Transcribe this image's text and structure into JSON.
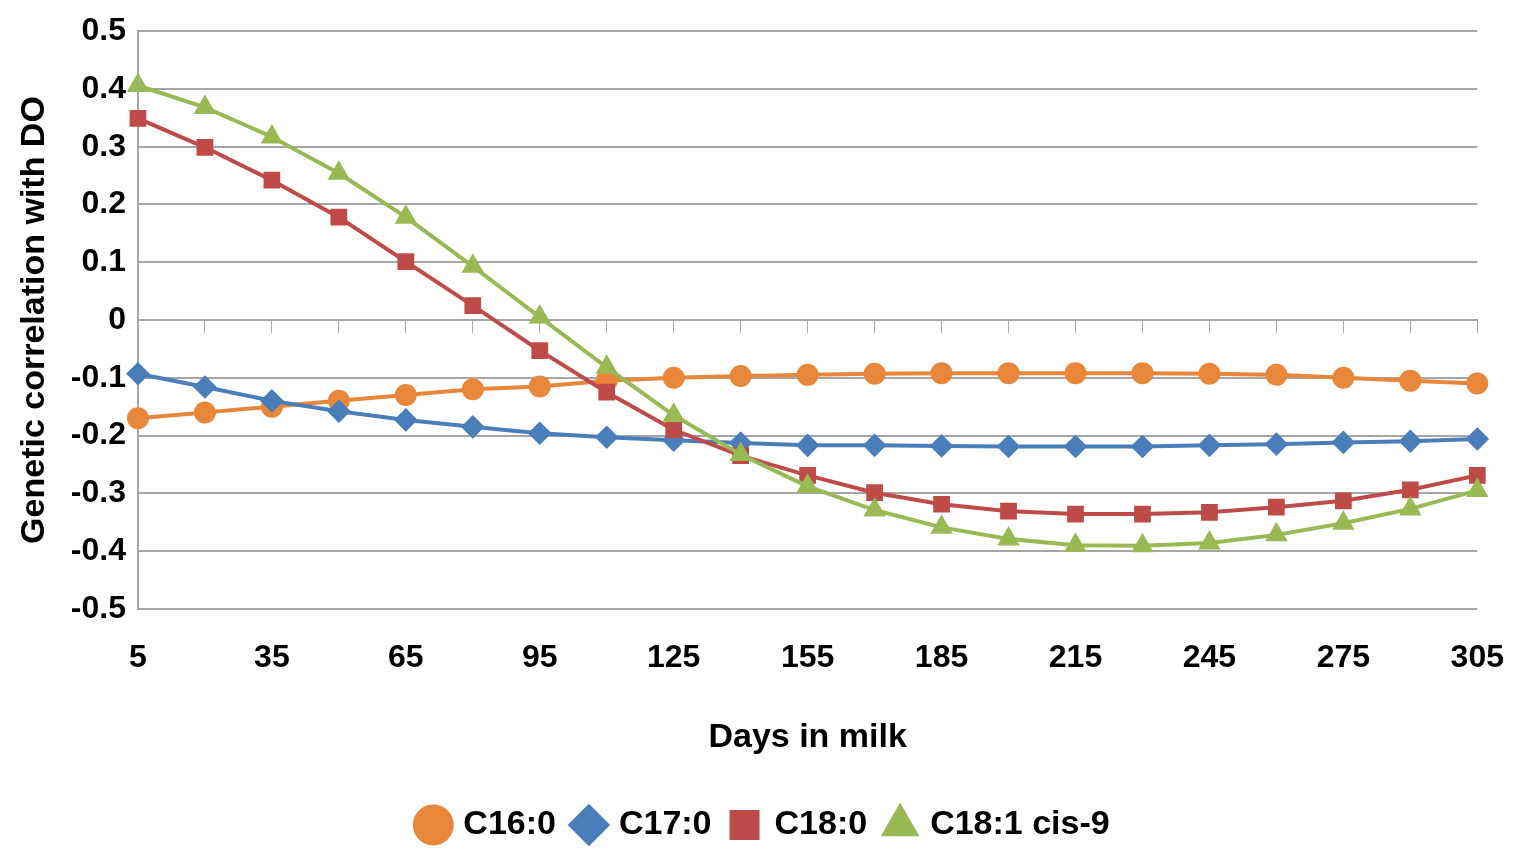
{
  "chart_data": {
    "type": "line",
    "xlabel": "Days in milk",
    "ylabel": "Genetic correlation with DO",
    "categories": [
      "5",
      null,
      "35",
      null,
      "65",
      null,
      "95",
      null,
      "125",
      null,
      "155",
      null,
      "185",
      null,
      "215",
      null,
      "245",
      null,
      "275",
      null,
      "305"
    ],
    "ylim": [
      -0.5,
      0.5
    ],
    "yticks": [
      -0.5,
      -0.4,
      -0.3,
      -0.2,
      -0.1,
      0,
      0.1,
      0.2,
      0.3,
      0.4,
      0.5
    ],
    "grid": "y",
    "legend": "bottom",
    "series": [
      {
        "name": "C16:0",
        "color": "#e8873a",
        "marker": "circle",
        "values": [
          -0.17,
          -0.16,
          -0.15,
          -0.14,
          -0.13,
          -0.12,
          -0.115,
          -0.105,
          -0.1,
          -0.097,
          -0.095,
          -0.093,
          -0.092,
          -0.092,
          -0.092,
          -0.092,
          -0.093,
          -0.095,
          -0.1,
          -0.105,
          -0.11
        ]
      },
      {
        "name": "C17:0",
        "color": "#4a7ebb",
        "marker": "diamond",
        "values": [
          -0.093,
          -0.116,
          -0.14,
          -0.158,
          -0.173,
          -0.185,
          -0.196,
          -0.203,
          -0.208,
          -0.213,
          -0.217,
          -0.217,
          -0.218,
          -0.219,
          -0.219,
          -0.219,
          -0.217,
          -0.215,
          -0.212,
          -0.21,
          -0.206
        ]
      },
      {
        "name": "C18:0",
        "color": "#be4b48",
        "marker": "square",
        "values": [
          0.349,
          0.299,
          0.242,
          0.178,
          0.101,
          0.025,
          -0.053,
          -0.125,
          -0.19,
          -0.235,
          -0.269,
          -0.299,
          -0.319,
          -0.331,
          -0.336,
          -0.336,
          -0.333,
          -0.324,
          -0.313,
          -0.294,
          -0.269
        ]
      },
      {
        "name": "C18:1 cis-9",
        "color": "#98b954",
        "marker": "triangle",
        "values": [
          0.406,
          0.368,
          0.317,
          0.254,
          0.178,
          0.093,
          0.005,
          -0.082,
          -0.165,
          -0.233,
          -0.288,
          -0.329,
          -0.359,
          -0.379,
          -0.39,
          -0.391,
          -0.386,
          -0.372,
          -0.352,
          -0.327,
          -0.295
        ]
      }
    ]
  }
}
